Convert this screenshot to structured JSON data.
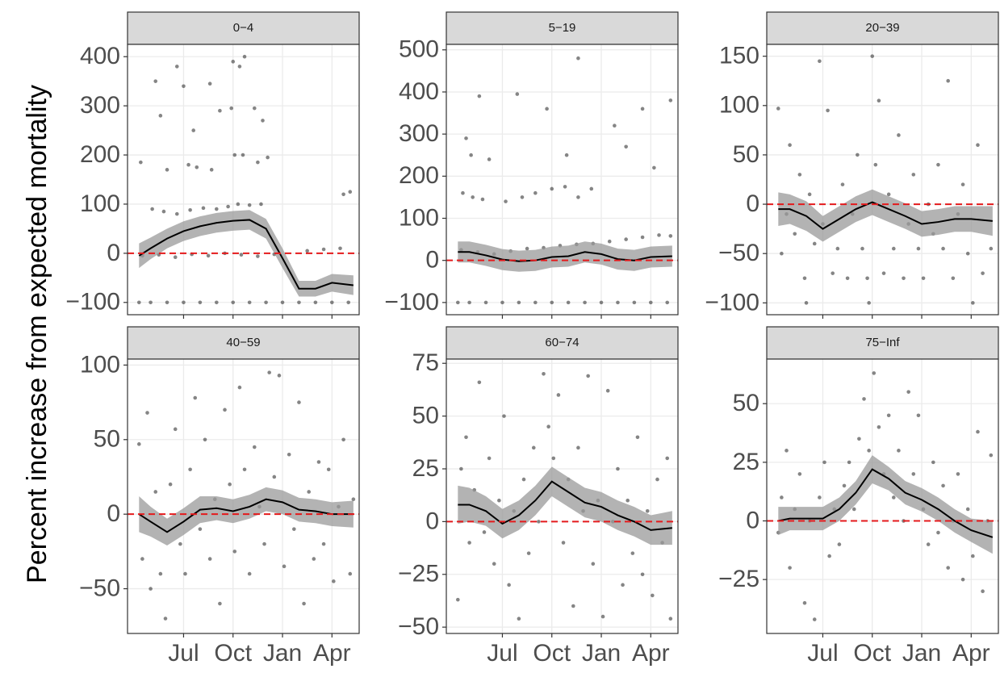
{
  "ylabel": "Percent increase from expected mortality",
  "chart_data": [
    {
      "type": "scatter",
      "title": "0−4",
      "xlim": [
        3.6,
        17.65
      ],
      "ylim": [
        -125,
        425
      ],
      "xticks": [
        {
          "value": 7,
          "label": "Jul"
        },
        {
          "value": 10,
          "label": "Oct"
        },
        {
          "value": 13,
          "label": "Jan"
        },
        {
          "value": 16,
          "label": "Apr"
        }
      ],
      "yticks": [
        {
          "value": -100,
          "label": "−100"
        },
        0,
        100,
        200,
        300,
        400
      ],
      "grid": true,
      "hline": 0,
      "hline_color": "#e41a1c",
      "point_color": "#333333",
      "x": [
        4.3,
        5,
        6,
        7,
        8,
        9,
        10,
        11,
        12,
        13,
        14,
        15,
        16,
        17,
        4.5,
        5.5,
        6.5,
        7.5,
        8.5,
        9.5,
        10.5,
        11.5,
        12.5,
        14.5,
        15.5,
        16.5,
        5.1,
        5.8,
        6.6,
        7.4,
        8.2,
        9,
        9.7,
        10.3,
        11,
        11.7,
        4.4,
        6.0,
        7.3,
        7.8,
        8.7,
        10.1,
        10.6,
        11.5,
        12.1,
        5.3,
        5.6,
        6.6,
        7.0,
        7.6,
        8.6,
        9.2,
        9.9,
        10,
        10.4,
        10.7,
        11.3,
        11.8,
        16.7,
        17.1
      ],
      "values": [
        -100,
        -100,
        -100,
        -100,
        -100,
        -100,
        -100,
        -100,
        -100,
        -100,
        -100,
        -100,
        -100,
        -100,
        -5,
        -3,
        -8,
        -2,
        -5,
        0,
        -3,
        -6,
        -2,
        5,
        8,
        10,
        90,
        85,
        80,
        88,
        92,
        90,
        95,
        100,
        98,
        100,
        185,
        170,
        180,
        175,
        170,
        200,
        200,
        185,
        195,
        350,
        280,
        380,
        340,
        250,
        345,
        290,
        295,
        390,
        380,
        400,
        295,
        270,
        120,
        125
      ],
      "smooth": {
        "x": [
          4.3,
          5,
          6,
          7,
          8,
          9,
          10,
          11,
          12,
          13,
          14,
          15,
          16,
          17.3
        ],
        "y": [
          -5,
          10,
          30,
          45,
          55,
          62,
          66,
          68,
          50,
          -10,
          -72,
          -72,
          -60,
          -65
        ],
        "lower": [
          -30,
          -12,
          10,
          25,
          35,
          42,
          46,
          48,
          30,
          -30,
          -88,
          -88,
          -78,
          -85
        ],
        "upper": [
          20,
          32,
          50,
          65,
          75,
          82,
          86,
          88,
          70,
          10,
          -56,
          -56,
          -42,
          -45
        ]
      }
    },
    {
      "type": "scatter",
      "title": "5−19",
      "xlim": [
        3.6,
        17.65
      ],
      "ylim": [
        -129,
        513
      ],
      "xticks": [
        {
          "value": 7,
          "label": "Jul"
        },
        {
          "value": 10,
          "label": "Oct"
        },
        {
          "value": 13,
          "label": "Jan"
        },
        {
          "value": 16,
          "label": "Apr"
        }
      ],
      "yticks": [
        {
          "value": -100,
          "label": "−100"
        },
        0,
        100,
        200,
        300,
        400,
        500
      ],
      "grid": true,
      "hline": 0,
      "hline_color": "#e41a1c",
      "point_color": "#333333",
      "x": [
        4.3,
        5,
        6,
        7,
        8,
        9,
        10,
        11,
        12,
        13,
        14,
        15,
        16,
        17,
        4.5,
        5.5,
        6.5,
        7.5,
        8.5,
        9.5,
        10.5,
        11.5,
        12.5,
        13.5,
        14.5,
        15.5,
        16.5,
        17.2,
        4.6,
        5.2,
        5.8,
        7.2,
        8.2,
        9,
        10,
        10.8,
        11.6,
        12.4,
        4.8,
        5.1,
        5.6,
        6.2,
        7.9,
        9.7,
        10.9,
        11.6,
        13.8,
        14.5,
        15.5,
        16.2,
        17.2
      ],
      "values": [
        -100,
        -100,
        -100,
        -100,
        -100,
        -100,
        -100,
        -100,
        -100,
        -100,
        -100,
        -100,
        -100,
        -100,
        25,
        20,
        15,
        22,
        28,
        30,
        35,
        38,
        40,
        45,
        50,
        55,
        60,
        58,
        160,
        150,
        145,
        140,
        150,
        160,
        170,
        175,
        150,
        170,
        290,
        250,
        390,
        240,
        395,
        360,
        250,
        480,
        320,
        270,
        360,
        220,
        380
      ],
      "smooth": {
        "x": [
          4.3,
          5,
          6,
          7,
          8,
          9,
          10,
          11,
          12,
          13,
          14,
          15,
          16,
          17.3
        ],
        "y": [
          20,
          20,
          12,
          2,
          -2,
          0,
          8,
          10,
          20,
          15,
          3,
          0,
          8,
          10
        ],
        "lower": [
          -5,
          -5,
          -13,
          -23,
          -27,
          -25,
          -17,
          -15,
          -5,
          -10,
          -22,
          -25,
          -17,
          -15
        ],
        "upper": [
          45,
          45,
          37,
          27,
          23,
          25,
          33,
          35,
          45,
          40,
          28,
          25,
          33,
          35
        ]
      }
    },
    {
      "type": "scatter",
      "title": "20−39",
      "xlim": [
        3.6,
        17.65
      ],
      "ylim": [
        -112,
        162
      ],
      "xticks": [
        {
          "value": 7,
          "label": "Jul"
        },
        {
          "value": 10,
          "label": "Oct"
        },
        {
          "value": 13,
          "label": "Jan"
        },
        {
          "value": 16,
          "label": "Apr"
        }
      ],
      "yticks": [
        {
          "value": -100,
          "label": "−100"
        },
        {
          "value": -50,
          "label": "−50"
        },
        0,
        50,
        100,
        150
      ],
      "grid": true,
      "hline": 0,
      "hline_color": "#e41a1c",
      "point_color": "#333333",
      "x": [
        4.3,
        4.5,
        4.8,
        5,
        5.3,
        5.6,
        5.9,
        6.2,
        6.5,
        6.8,
        7,
        7.3,
        7.6,
        7.9,
        8.2,
        8.5,
        8.8,
        9.1,
        9.4,
        9.7,
        10,
        10.2,
        10.4,
        10.7,
        11,
        11.3,
        11.6,
        11.9,
        12.2,
        12.5,
        12.8,
        13.1,
        13.4,
        13.7,
        14,
        14.3,
        14.6,
        14.9,
        15.2,
        15.5,
        15.8,
        16.1,
        16.4,
        16.7,
        17.2,
        6,
        9.8
      ],
      "values": [
        97,
        -50,
        -10,
        60,
        -30,
        30,
        -75,
        10,
        -40,
        145,
        -20,
        95,
        -70,
        -45,
        20,
        -75,
        -10,
        50,
        -45,
        -75,
        150,
        40,
        105,
        -70,
        10,
        -45,
        70,
        -75,
        -20,
        30,
        -45,
        -75,
        0,
        -30,
        40,
        -45,
        125,
        -75,
        -10,
        20,
        -50,
        -100,
        60,
        -70,
        -45,
        -100,
        -100
      ],
      "smooth": {
        "x": [
          4.3,
          5,
          6,
          7,
          8,
          9,
          10,
          11,
          12,
          13,
          14,
          15,
          16,
          17.3
        ],
        "y": [
          -5,
          -5,
          -12,
          -25,
          -15,
          -5,
          2,
          -5,
          -12,
          -20,
          -18,
          -15,
          -15,
          -17
        ],
        "lower": [
          -22,
          -20,
          -27,
          -38,
          -28,
          -18,
          -11,
          -18,
          -25,
          -33,
          -31,
          -28,
          -28,
          -32
        ],
        "upper": [
          12,
          10,
          3,
          -12,
          -2,
          8,
          15,
          8,
          1,
          -7,
          -5,
          -2,
          -2,
          -2
        ]
      }
    },
    {
      "type": "scatter",
      "title": "40−59",
      "xlim": [
        3.6,
        17.65
      ],
      "ylim": [
        -80,
        104
      ],
      "xticks": [
        {
          "value": 7,
          "label": "Jul"
        },
        {
          "value": 10,
          "label": "Oct"
        },
        {
          "value": 13,
          "label": "Jan"
        },
        {
          "value": 16,
          "label": "Apr"
        }
      ],
      "yticks": [
        {
          "value": -50,
          "label": "−50"
        },
        0,
        50,
        100
      ],
      "grid": true,
      "hline": 0,
      "hline_color": "#e41a1c",
      "point_color": "#333333",
      "x": [
        4.3,
        4.5,
        4.8,
        5,
        5.3,
        5.6,
        5.9,
        6.2,
        6.5,
        6.8,
        7.1,
        7.4,
        7.7,
        8,
        8.3,
        8.6,
        8.9,
        9.2,
        9.5,
        9.8,
        10.1,
        10.4,
        10.7,
        11,
        11.3,
        11.6,
        11.9,
        12.2,
        12.5,
        12.8,
        13.1,
        13.4,
        13.7,
        14,
        14.3,
        14.6,
        14.9,
        15.2,
        15.5,
        15.8,
        16.1,
        16.4,
        16.7,
        17.1,
        17.3
      ],
      "values": [
        47,
        -30,
        68,
        -50,
        15,
        -40,
        -70,
        20,
        57,
        -20,
        -40,
        30,
        78,
        -10,
        50,
        -30,
        10,
        -60,
        70,
        20,
        -25,
        85,
        30,
        -40,
        45,
        5,
        -20,
        95,
        25,
        93,
        -35,
        40,
        -10,
        75,
        -60,
        15,
        -30,
        35,
        -20,
        30,
        -45,
        5,
        50,
        -40,
        10
      ],
      "smooth": {
        "x": [
          4.3,
          5,
          6,
          7,
          8,
          9,
          10,
          11,
          12,
          13,
          14,
          15,
          16,
          17.3
        ],
        "y": [
          0,
          -5,
          -12,
          -5,
          3,
          4,
          2,
          5,
          10,
          8,
          3,
          2,
          0,
          0
        ],
        "lower": [
          -12,
          -15,
          -21,
          -14,
          -6,
          -4,
          -6,
          -3,
          2,
          0,
          -5,
          -6,
          -8,
          -9
        ],
        "upper": [
          12,
          5,
          -3,
          4,
          12,
          12,
          10,
          13,
          18,
          16,
          11,
          10,
          8,
          9
        ]
      }
    },
    {
      "type": "scatter",
      "title": "60−74",
      "xlim": [
        3.6,
        17.65
      ],
      "ylim": [
        -53,
        77
      ],
      "xticks": [
        {
          "value": 7,
          "label": "Jul"
        },
        {
          "value": 10,
          "label": "Oct"
        },
        {
          "value": 13,
          "label": "Jan"
        },
        {
          "value": 16,
          "label": "Apr"
        }
      ],
      "yticks": [
        {
          "value": -50,
          "label": "−50"
        },
        {
          "value": -25,
          "label": "−25"
        },
        0,
        25,
        50,
        75
      ],
      "grid": true,
      "hline": 0,
      "hline_color": "#e41a1c",
      "point_color": "#333333",
      "x": [
        4.3,
        4.5,
        4.8,
        5,
        5.3,
        5.6,
        5.9,
        6.2,
        6.5,
        6.8,
        7.1,
        7.4,
        7.7,
        8,
        8.3,
        8.6,
        8.9,
        9.2,
        9.5,
        9.8,
        10.1,
        10.4,
        10.7,
        11,
        11.3,
        11.6,
        11.9,
        12.2,
        12.5,
        12.8,
        13.1,
        13.4,
        13.7,
        14,
        14.3,
        14.6,
        14.9,
        15.2,
        15.5,
        15.8,
        16.1,
        16.4,
        16.7,
        17,
        17.2
      ],
      "values": [
        -37,
        25,
        40,
        -10,
        15,
        66,
        -5,
        30,
        -20,
        10,
        50,
        -30,
        5,
        -46,
        20,
        -15,
        35,
        0,
        70,
        45,
        30,
        60,
        -10,
        20,
        -40,
        35,
        5,
        69,
        -20,
        10,
        -45,
        62,
        0,
        25,
        -30,
        10,
        -15,
        40,
        -25,
        5,
        -35,
        20,
        -10,
        30,
        -46
      ],
      "smooth": {
        "x": [
          4.3,
          5,
          6,
          7,
          8,
          9,
          10,
          11,
          12,
          13,
          14,
          15,
          16,
          17.3
        ],
        "y": [
          8,
          8,
          5,
          -1,
          3,
          10,
          19,
          14,
          9,
          7,
          3,
          0,
          -4,
          -3
        ],
        "lower": [
          -1,
          0,
          -2,
          -8,
          -4,
          3,
          12,
          7,
          2,
          0,
          -4,
          -7,
          -11,
          -11
        ],
        "upper": [
          17,
          16,
          12,
          6,
          10,
          17,
          26,
          21,
          16,
          14,
          10,
          7,
          3,
          5
        ]
      }
    },
    {
      "type": "scatter",
      "title": "75−Inf",
      "xlim": [
        3.6,
        17.65
      ],
      "ylim": [
        -48,
        69
      ],
      "xticks": [
        {
          "value": 7,
          "label": "Jul"
        },
        {
          "value": 10,
          "label": "Oct"
        },
        {
          "value": 13,
          "label": "Jan"
        },
        {
          "value": 16,
          "label": "Apr"
        }
      ],
      "yticks": [
        {
          "value": -25,
          "label": "−25"
        },
        0,
        25,
        50
      ],
      "grid": true,
      "hline": 0,
      "hline_color": "#e41a1c",
      "point_color": "#333333",
      "x": [
        4.3,
        4.5,
        4.8,
        5,
        5.3,
        5.6,
        5.9,
        6.2,
        6.5,
        6.8,
        7.1,
        7.4,
        7.7,
        8,
        8.3,
        8.6,
        8.9,
        9.2,
        9.5,
        9.8,
        10.1,
        10.4,
        10.7,
        11,
        11.3,
        11.6,
        11.9,
        12.2,
        12.5,
        12.8,
        13.1,
        13.4,
        13.7,
        14,
        14.3,
        14.6,
        14.9,
        15.2,
        15.5,
        15.8,
        16.1,
        16.4,
        16.7,
        17,
        17.2
      ],
      "values": [
        -5,
        10,
        30,
        -20,
        5,
        20,
        -35,
        0,
        -42,
        10,
        25,
        -15,
        5,
        -10,
        15,
        25,
        5,
        35,
        52,
        30,
        63,
        40,
        20,
        45,
        10,
        30,
        0,
        55,
        20,
        45,
        5,
        -10,
        25,
        -5,
        15,
        -20,
        0,
        20,
        -25,
        5,
        -15,
        38,
        -30,
        0,
        28
      ],
      "smooth": {
        "x": [
          4.3,
          5,
          6,
          7,
          8,
          9,
          10,
          11,
          12,
          13,
          14,
          15,
          16,
          17.3
        ],
        "y": [
          0,
          1,
          1,
          1,
          5,
          12,
          22,
          18,
          12,
          9,
          5,
          0,
          -4,
          -7
        ],
        "lower": [
          -6,
          -4,
          -4,
          -4,
          0,
          7,
          16,
          13,
          7,
          4,
          0,
          -5,
          -9,
          -14
        ],
        "upper": [
          6,
          6,
          6,
          6,
          10,
          17,
          28,
          23,
          17,
          14,
          10,
          5,
          1,
          0
        ]
      }
    }
  ]
}
